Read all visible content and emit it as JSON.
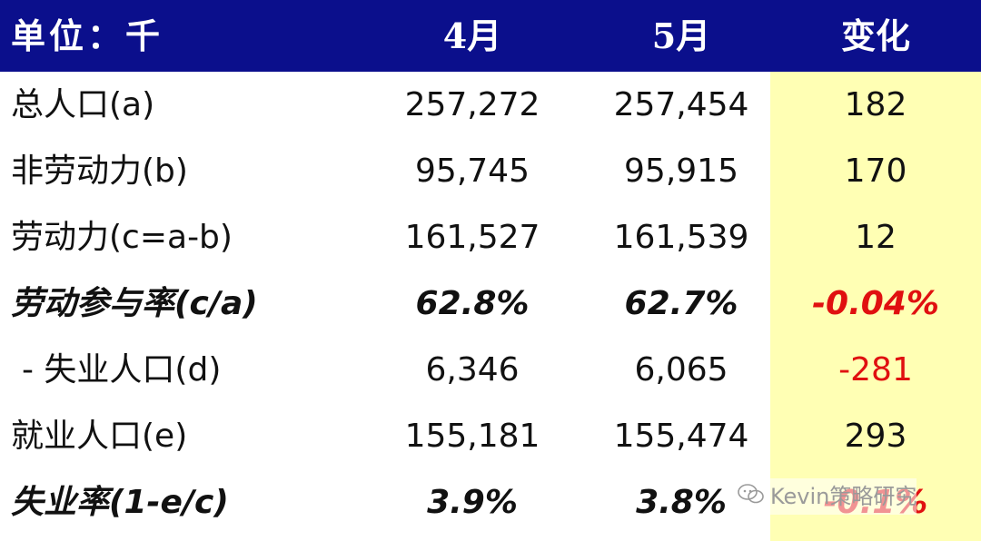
{
  "header": {
    "unit_label": "单位：千",
    "col_apr": "4月",
    "col_may": "5月",
    "col_change": "变化"
  },
  "rows": [
    {
      "label": "总人口(a)",
      "apr": "257,272",
      "may": "257,454",
      "change": "182"
    },
    {
      "label": "非劳动力(b)",
      "apr": "95,745",
      "may": "95,915",
      "change": "170"
    },
    {
      "label": "劳动力(c=a-b)",
      "apr": "161,527",
      "may": "161,539",
      "change": "12"
    },
    {
      "label": "劳动参与率(c/a)",
      "apr": "62.8%",
      "may": "62.7%",
      "change": "-0.04%"
    },
    {
      "label": "- 失业人口(d)",
      "apr": "6,346",
      "may": "6,065",
      "change": "-281"
    },
    {
      "label": "就业人口(e)",
      "apr": "155,181",
      "may": "155,474",
      "change": "293"
    },
    {
      "label": "失业率(1-e/c)",
      "apr": "3.9%",
      "may": "3.8%",
      "change": "-0.1%"
    }
  ],
  "watermark": "Kevin策略研究",
  "colors": {
    "header_bg": "#0b0f8c",
    "highlight": "#ffffb4",
    "negative": "#e01010"
  }
}
